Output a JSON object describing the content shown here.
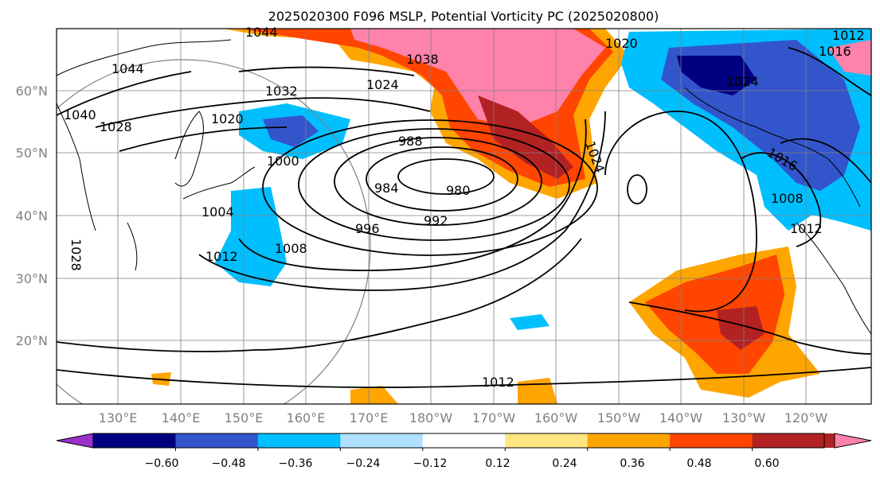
{
  "title": "2025020300 F096 MSLP, Potential Vorticity PC (2025020800)",
  "map": {
    "lat_labels": [
      "60°N",
      "50°N",
      "40°N",
      "30°N",
      "20°N"
    ],
    "lon_labels": [
      "130°E",
      "140°E",
      "150°E",
      "160°E",
      "170°E",
      "180°W",
      "170°W",
      "160°W",
      "150°W",
      "140°W",
      "130°W",
      "120°W"
    ],
    "isobar_labels": [
      "1044",
      "1044",
      "1032",
      "1024",
      "1020",
      "1028",
      "1040",
      "1038",
      "1020",
      "1016",
      "1012",
      "1024",
      "988",
      "1000",
      "984",
      "980",
      "992",
      "996",
      "1004",
      "1008",
      "1012",
      "1028",
      "1012",
      "1024",
      "1016",
      "1008",
      "1012"
    ]
  },
  "colorbar": {
    "colors": [
      "#9932cc",
      "#000080",
      "#3355cc",
      "#00bfff",
      "#b0e0ff",
      "#ffffff",
      "#ffe680",
      "#ffa500",
      "#ff4500",
      "#b22222",
      "#ff82ab"
    ],
    "tick_labels": [
      "−0.60",
      "−0.48",
      "−0.36",
      "−0.24",
      "−0.12",
      "0.12",
      "0.24",
      "0.36",
      "0.48",
      "0.60"
    ]
  }
}
